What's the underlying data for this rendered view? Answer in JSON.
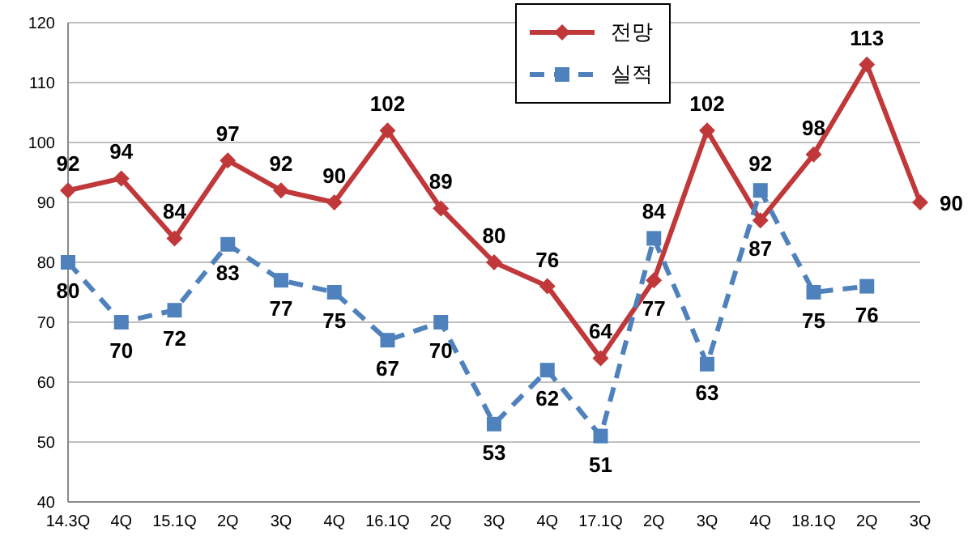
{
  "chart_data": {
    "type": "line",
    "categories": [
      "14.3Q",
      "4Q",
      "15.1Q",
      "2Q",
      "3Q",
      "4Q",
      "16.1Q",
      "2Q",
      "3Q",
      "4Q",
      "17.1Q",
      "2Q",
      "3Q",
      "4Q",
      "18.1Q",
      "2Q",
      "3Q"
    ],
    "series": [
      {
        "name": "전망",
        "color": "#c0383a",
        "marker": "diamond",
        "line_style": "solid",
        "values": [
          92,
          94,
          84,
          97,
          92,
          90,
          102,
          89,
          80,
          76,
          64,
          77,
          102,
          87,
          98,
          113,
          90
        ]
      },
      {
        "name": "실적",
        "color": "#4f81bd",
        "marker": "square",
        "line_style": "dashed",
        "values": [
          80,
          70,
          72,
          83,
          77,
          75,
          67,
          70,
          53,
          62,
          51,
          84,
          63,
          92,
          75,
          76,
          null
        ]
      }
    ],
    "ylim": [
      40,
      120
    ],
    "yticks": [
      40,
      50,
      60,
      70,
      80,
      90,
      100,
      110,
      120
    ],
    "grid": "y",
    "legend": "top",
    "data_labels": true
  }
}
